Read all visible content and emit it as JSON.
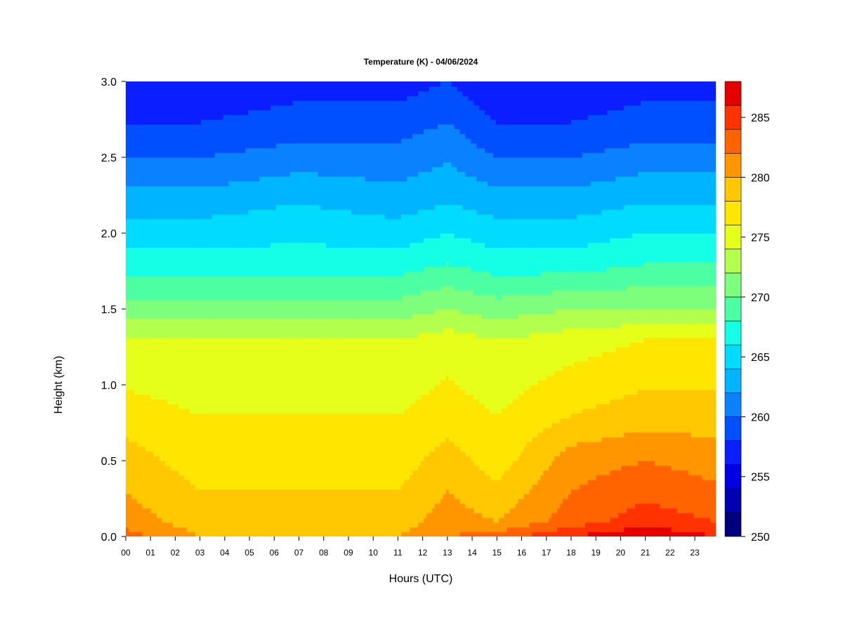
{
  "chart_data": {
    "type": "heatmap",
    "title": "Temperature (K) - 04/06/2024",
    "xlabel": "Hours (UTC)",
    "ylabel": "Height (km)",
    "x_ticks": [
      "00",
      "01",
      "02",
      "03",
      "04",
      "05",
      "06",
      "07",
      "08",
      "09",
      "10",
      "11",
      "12",
      "13",
      "14",
      "15",
      "16",
      "17",
      "18",
      "19",
      "20",
      "21",
      "22",
      "23"
    ],
    "x_tick_values": [
      0,
      1,
      2,
      3,
      4,
      5,
      6,
      7,
      8,
      9,
      10,
      11,
      12,
      13,
      14,
      15,
      16,
      17,
      18,
      19,
      20,
      21,
      22,
      23
    ],
    "xlim": [
      0,
      23.85
    ],
    "y_ticks": [
      "0.0",
      "0.5",
      "1.0",
      "1.5",
      "2.0",
      "2.5",
      "3.0"
    ],
    "y_tick_values": [
      0,
      0.5,
      1.0,
      1.5,
      2.0,
      2.5,
      3.0
    ],
    "ylim": [
      0,
      3.0
    ],
    "colorbar": {
      "range": [
        250,
        288
      ],
      "ticks": [
        "250",
        "255",
        "260",
        "265",
        "270",
        "275",
        "280",
        "285"
      ],
      "tick_values": [
        250,
        255,
        260,
        265,
        270,
        275,
        280,
        285
      ],
      "levels": [
        250,
        252,
        254,
        256,
        258,
        260,
        262,
        264,
        266,
        268,
        270,
        272,
        274,
        276,
        278,
        280,
        282,
        284,
        286,
        288
      ],
      "colors": [
        "#00007f",
        "#0000b2",
        "#0000e5",
        "#0a1eff",
        "#0050ff",
        "#0a82ff",
        "#00b4ff",
        "#00dcff",
        "#14ffe6",
        "#4dffa3",
        "#7dff7d",
        "#b2ff4d",
        "#e5ff1a",
        "#ffe600",
        "#ffc800",
        "#ff9600",
        "#ff6400",
        "#ff3200",
        "#e50000",
        "#b20000",
        "#7f0000"
      ]
    },
    "grid": false,
    "legend": "colorbar-right",
    "temperature_profiles": [
      {
        "hour": 0,
        "heights": [
          0,
          0.1,
          0.5,
          0.8,
          1.3,
          1.5,
          1.8,
          2.2,
          2.6,
          3.0
        ],
        "values": [
          281,
          279,
          277,
          275,
          272,
          269,
          265,
          261,
          257,
          254
        ]
      },
      {
        "hour": 3,
        "heights": [
          0,
          0.1,
          0.5,
          0.8,
          1.3,
          1.5,
          1.8,
          2.2,
          2.6,
          3.0
        ],
        "values": [
          278,
          277,
          275,
          274,
          272,
          269,
          265,
          261,
          257,
          254
        ]
      },
      {
        "hour": 7,
        "heights": [
          0,
          0.1,
          0.5,
          0.8,
          1.3,
          1.5,
          1.8,
          2.2,
          2.6,
          3.0
        ],
        "values": [
          278,
          277,
          275,
          274,
          272,
          269,
          265,
          262,
          258,
          255
        ]
      },
      {
        "hour": 11,
        "heights": [
          0,
          0.1,
          0.5,
          0.8,
          1.3,
          1.5,
          1.8,
          2.2,
          2.6,
          3.0
        ],
        "values": [
          278,
          277,
          275,
          274,
          272,
          269,
          265,
          261,
          258,
          255
        ]
      },
      {
        "hour": 13,
        "heights": [
          0,
          0.1,
          0.5,
          0.8,
          1.3,
          1.5,
          1.8,
          2.2,
          2.6,
          3.0
        ],
        "values": [
          280,
          279,
          277,
          275,
          273,
          270,
          266,
          262,
          259,
          256
        ]
      },
      {
        "hour": 15,
        "heights": [
          0,
          0.1,
          0.5,
          0.8,
          1.3,
          1.5,
          1.8,
          2.2,
          2.6,
          3.0
        ],
        "values": [
          281,
          278,
          275,
          274,
          272,
          269,
          265,
          261,
          257,
          254
        ]
      },
      {
        "hour": 18,
        "heights": [
          0,
          0.1,
          0.5,
          0.8,
          1.3,
          1.5,
          1.8,
          2.2,
          2.6,
          3.0
        ],
        "values": [
          284,
          281,
          279,
          276,
          273,
          270,
          265,
          261,
          257,
          254
        ]
      },
      {
        "hour": 21,
        "heights": [
          0,
          0.1,
          0.5,
          0.8,
          1.3,
          1.5,
          1.8,
          2.2,
          2.6,
          3.0
        ],
        "values": [
          286,
          283,
          280,
          277,
          274,
          270,
          266,
          262,
          258,
          255
        ]
      },
      {
        "hour": 23.85,
        "heights": [
          0,
          0.1,
          0.5,
          0.8,
          1.3,
          1.5,
          1.8,
          2.2,
          2.6,
          3.0
        ],
        "values": [
          284,
          282,
          279,
          277,
          274,
          270,
          266,
          262,
          258,
          255
        ]
      }
    ]
  }
}
